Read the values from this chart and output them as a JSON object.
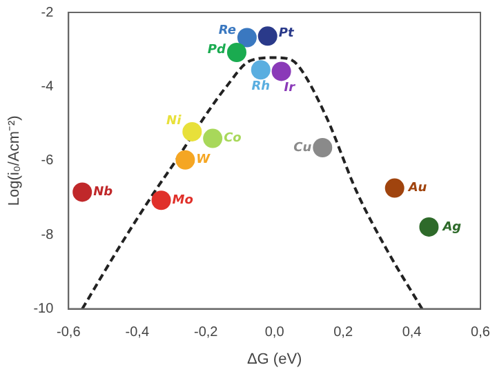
{
  "chart_data": {
    "type": "scatter",
    "xlabel": "ΔG (eV)",
    "ylabel": "Log(i₀/Acm⁻²)",
    "xlim": [
      -0.6,
      0.6
    ],
    "ylim": [
      -10,
      -2
    ],
    "xticks": [
      {
        "value": -0.6,
        "label": "-0,6"
      },
      {
        "value": -0.4,
        "label": "-0,4"
      },
      {
        "value": -0.2,
        "label": "-0,2"
      },
      {
        "value": 0,
        "label": "0,0"
      },
      {
        "value": 0.2,
        "label": "0,2"
      },
      {
        "value": 0.4,
        "label": "0,4"
      },
      {
        "value": 0.6,
        "label": "0,6"
      }
    ],
    "yticks": [
      -10,
      -8,
      -6,
      -4,
      -2
    ],
    "grid": false,
    "legend": false,
    "marker": "circle",
    "series": [
      {
        "name": "Nb",
        "color": "#c0282a",
        "x": [
          -0.56
        ],
        "values": [
          -6.85
        ]
      },
      {
        "name": "Mo",
        "color": "#e0302a",
        "x": [
          -0.33
        ],
        "values": [
          -7.07
        ]
      },
      {
        "name": "W",
        "color": "#f5a623",
        "x": [
          -0.26
        ],
        "values": [
          -5.98
        ]
      },
      {
        "name": "Ni",
        "color": "#e8e03a",
        "x": [
          -0.24
        ],
        "values": [
          -5.22
        ]
      },
      {
        "name": "Co",
        "color": "#a8d85a",
        "x": [
          -0.18
        ],
        "values": [
          -5.4
        ]
      },
      {
        "name": "Pd",
        "color": "#1aab50",
        "x": [
          -0.11
        ],
        "values": [
          -3.08
        ]
      },
      {
        "name": "Re",
        "color": "#3a78c0",
        "x": [
          -0.08
        ],
        "values": [
          -2.68
        ]
      },
      {
        "name": "Pt",
        "color": "#2a3a8a",
        "x": [
          -0.02
        ],
        "values": [
          -2.64
        ]
      },
      {
        "name": "Rh",
        "color": "#5aaee0",
        "x": [
          -0.04
        ],
        "values": [
          -3.55
        ]
      },
      {
        "name": "Ir",
        "color": "#8a3ab8",
        "x": [
          0.02
        ],
        "values": [
          -3.59
        ]
      },
      {
        "name": "Cu",
        "color": "#8a8a8a",
        "x": [
          0.14
        ],
        "values": [
          -5.65
        ]
      },
      {
        "name": "Au",
        "color": "#a0440e",
        "x": [
          0.35
        ],
        "values": [
          -6.74
        ]
      },
      {
        "name": "Ag",
        "color": "#2e6a2a",
        "x": [
          0.45
        ],
        "values": [
          -7.79
        ]
      },
      {
        "type": "line",
        "color": "#222222",
        "line_style": "dashed",
        "marker": "none",
        "x": [
          -0.56,
          -0.45,
          -0.35,
          -0.28,
          -0.22,
          -0.14,
          -0.07,
          0,
          0.04,
          0.07,
          0.15,
          0.24,
          0.33,
          0.43
        ],
        "values": [
          -10,
          -8.3,
          -6.85,
          -5.9,
          -5.04,
          -4.0,
          -3.3,
          -3.22,
          -3.25,
          -3.45,
          -4.8,
          -6.85,
          -8.45,
          -10
        ]
      }
    ]
  }
}
